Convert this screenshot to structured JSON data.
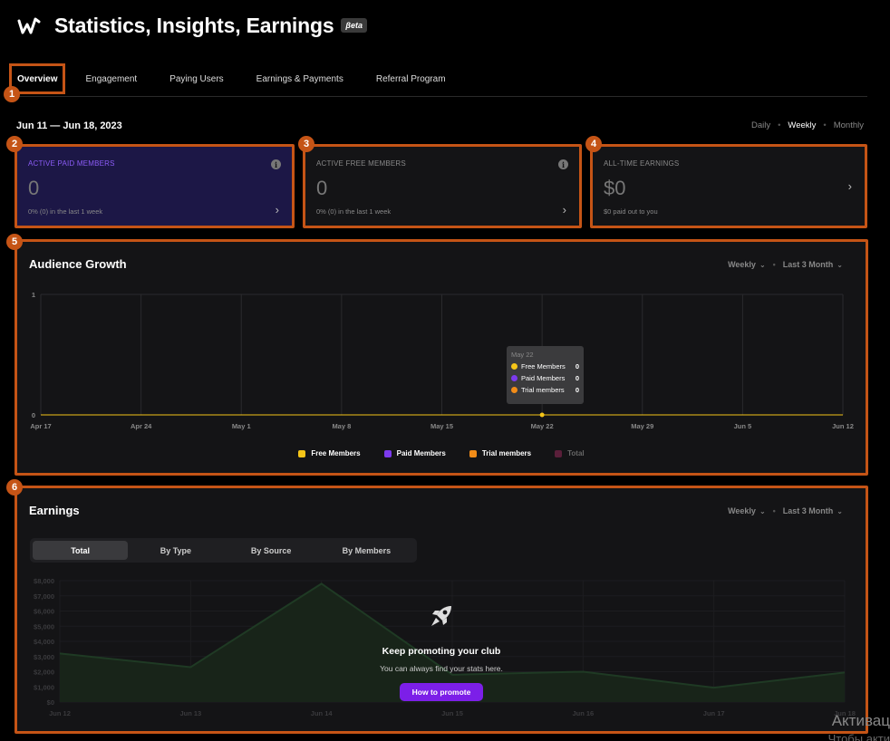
{
  "header": {
    "title": "Statistics, Insights, Earnings",
    "badge": "βeta",
    "logo_icon": "wave-logo-icon"
  },
  "tabs": [
    {
      "label": "Overview",
      "active": true
    },
    {
      "label": "Engagement"
    },
    {
      "label": "Paying Users"
    },
    {
      "label": "Earnings & Payments"
    },
    {
      "label": "Referral Program"
    }
  ],
  "date_range": "Jun 11 — Jun 18, 2023",
  "period": {
    "options": [
      "Daily",
      "Weekly",
      "Monthly"
    ],
    "selected": "Weekly"
  },
  "markers": [
    "1",
    "2",
    "3",
    "4",
    "5",
    "6"
  ],
  "cards": {
    "paid": {
      "label": "ACTIVE PAID MEMBERS",
      "value": "0",
      "sub": "0% (0) in the last 1 week"
    },
    "free": {
      "label": "ACTIVE FREE MEMBERS",
      "value": "0",
      "sub": "0% (0) in the last 1 week"
    },
    "earnings": {
      "label": "ALL-TIME EARNINGS",
      "value": "$0",
      "sub": "$0 paid out to you"
    }
  },
  "audience": {
    "title": "Audience Growth",
    "interval": "Weekly",
    "range": "Last 3 Month",
    "tooltip": {
      "title": "May 22",
      "rows": [
        {
          "label": "Free Members",
          "value": "0",
          "color": "#f5c518"
        },
        {
          "label": "Paid Members",
          "value": "0",
          "color": "#7c3aed"
        },
        {
          "label": "Trial members",
          "value": "0",
          "color": "#f28c18"
        }
      ]
    },
    "legend": [
      {
        "label": "Free Members",
        "color": "#f5c518"
      },
      {
        "label": "Paid Members",
        "color": "#7c3aed"
      },
      {
        "label": "Trial members",
        "color": "#f28c18"
      },
      {
        "label": "Total",
        "color": "#5a1f3a"
      }
    ]
  },
  "earnings_panel": {
    "title": "Earnings",
    "interval": "Weekly",
    "range": "Last 3 Month",
    "segments": [
      "Total",
      "By Type",
      "By Source",
      "By Members"
    ],
    "empty_title": "Keep promoting your club",
    "empty_sub": "You can always find your stats here.",
    "promote_label": "How to promote"
  },
  "chart_data": [
    {
      "type": "line",
      "x": [
        "Apr 17",
        "Apr 24",
        "May 1",
        "May 8",
        "May 15",
        "May 22",
        "May 29",
        "Jun 5",
        "Jun 12"
      ],
      "series": [
        {
          "name": "Free Members",
          "values": [
            0,
            0,
            0,
            0,
            0,
            0,
            0,
            0,
            0
          ]
        },
        {
          "name": "Paid Members",
          "values": [
            0,
            0,
            0,
            0,
            0,
            0,
            0,
            0,
            0
          ]
        },
        {
          "name": "Trial members",
          "values": [
            0,
            0,
            0,
            0,
            0,
            0,
            0,
            0,
            0
          ]
        },
        {
          "name": "Total",
          "values": [
            0,
            0,
            0,
            0,
            0,
            0,
            0,
            0,
            0
          ]
        }
      ],
      "ylim": [
        0,
        1
      ],
      "yticks": [
        "0",
        "1"
      ],
      "grid": true,
      "legend": "bottom"
    },
    {
      "type": "area",
      "x": [
        "Jun 12",
        "Jun 13",
        "Jun 14",
        "Jun 15",
        "Jun 16",
        "Jun 17",
        "Jun 18"
      ],
      "values": [
        3200,
        2300,
        7800,
        1800,
        2000,
        950,
        1950
      ],
      "ylim": [
        0,
        8000
      ],
      "yticks": [
        "$0",
        "$1,000",
        "$2,000",
        "$3,000",
        "$4,000",
        "$5,000",
        "$6,000",
        "$7,000",
        "$8,000"
      ],
      "grid": true
    }
  ],
  "watermark": {
    "line1": "Активац",
    "line2": "Чтобы акти"
  }
}
